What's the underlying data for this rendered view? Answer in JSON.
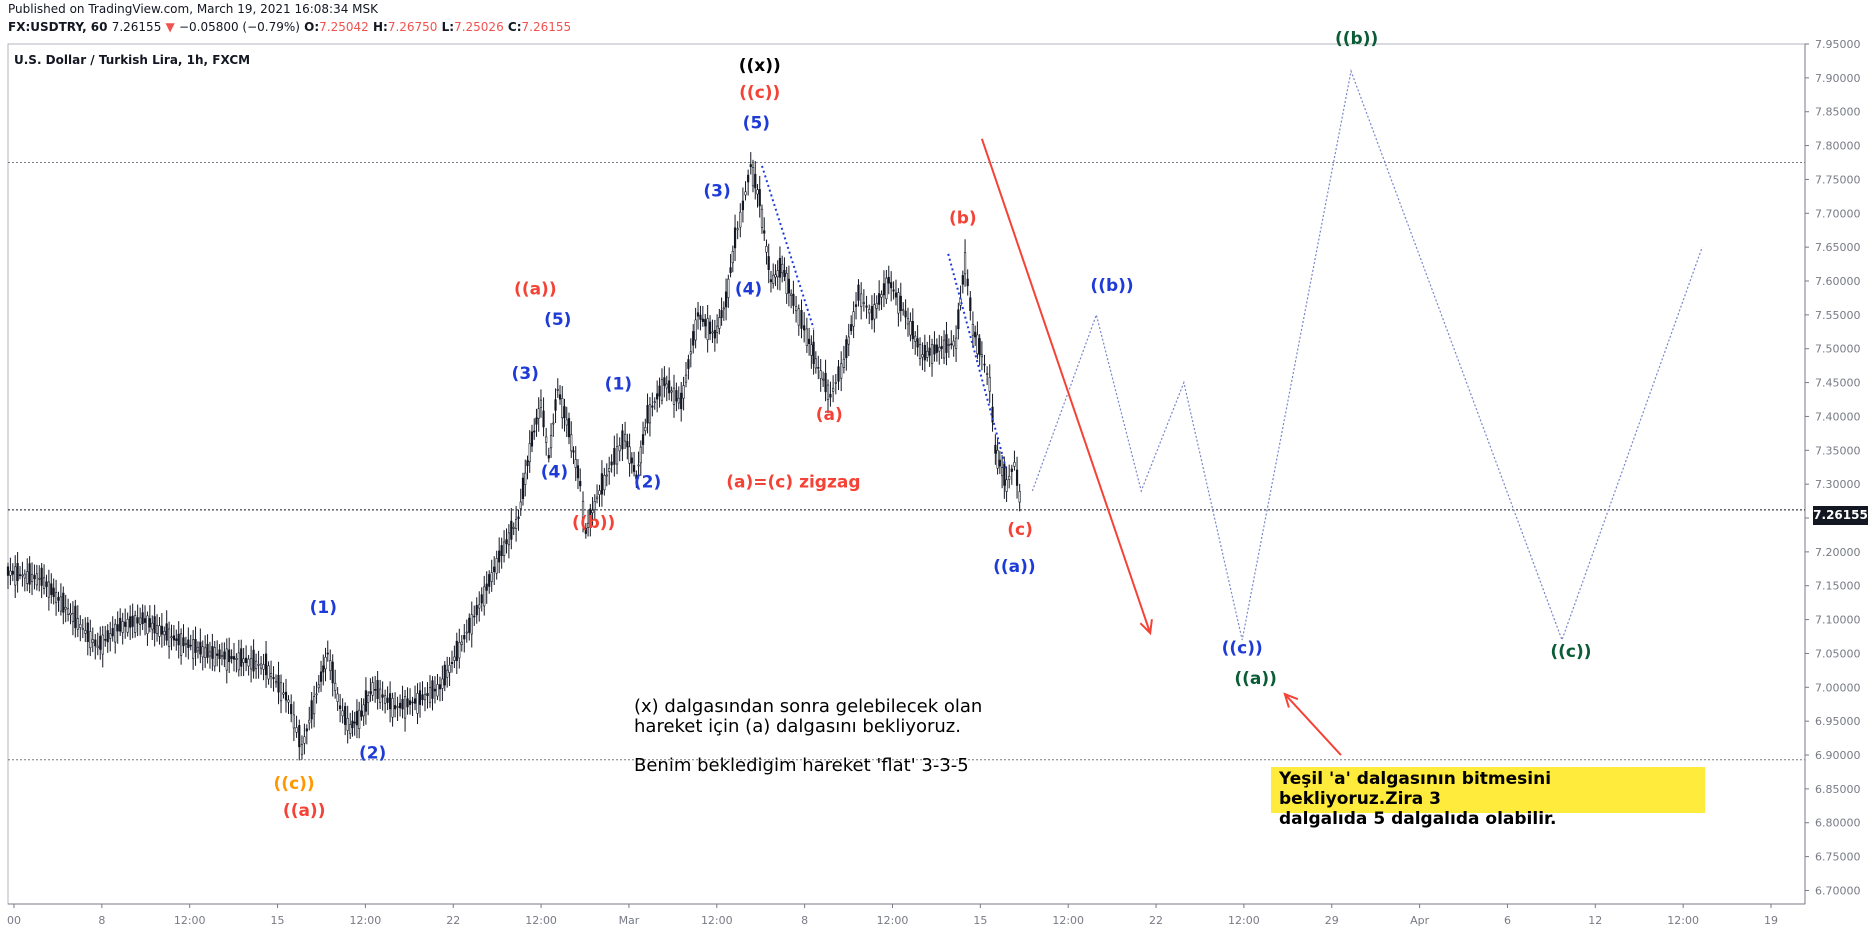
{
  "header": {
    "published": "Published on TradingView.com, March 19, 2021 16:08:34 MSK",
    "symbol": "FX:USDTRY, 60",
    "last": "7.26155",
    "arrow": "▼",
    "change": "−0.05800 (−0.79%)",
    "o_label": "O:",
    "o": "7.25042",
    "h_label": "H:",
    "h": "7.26750",
    "l_label": "L:",
    "l": "7.25026",
    "c_label": "C:",
    "c": "7.26155"
  },
  "chart_data": {
    "type": "line",
    "title": "U.S. Dollar / Turkish Lira, 1h, FXCM",
    "ylim": [
      6.68,
      7.95
    ],
    "y_ticks": [
      "7.95000",
      "7.90000",
      "7.85000",
      "7.80000",
      "7.75000",
      "7.70000",
      "7.65000",
      "7.60000",
      "7.55000",
      "7.50000",
      "7.45000",
      "7.40000",
      "7.35000",
      "7.30000",
      "7.25000",
      "7.20000",
      "7.15000",
      "7.10000",
      "7.05000",
      "7.00000",
      "6.95000",
      "6.90000",
      "6.85000",
      "6.80000",
      "6.75000",
      "6.70000"
    ],
    "x_ticks": [
      "00",
      "8",
      "12:00",
      "15",
      "12:00",
      "22",
      "12:00",
      "Mar",
      "12:00",
      "8",
      "12:00",
      "15",
      "12:00",
      "22",
      "12:00",
      "29",
      "Apr",
      "6",
      "12",
      "12:00",
      "19"
    ],
    "last_price": "7.26155",
    "price_path": [
      [
        0,
        7.17
      ],
      [
        30,
        7.16
      ],
      [
        60,
        7.1
      ],
      [
        80,
        7.06
      ],
      [
        100,
        7.09
      ],
      [
        120,
        7.1
      ],
      [
        150,
        7.07
      ],
      [
        180,
        7.05
      ],
      [
        210,
        7.04
      ],
      [
        230,
        7.03
      ],
      [
        250,
        6.98
      ],
      [
        262,
        6.91
      ],
      [
        275,
        6.99
      ],
      [
        285,
        7.05
      ],
      [
        296,
        6.97
      ],
      [
        305,
        6.94
      ],
      [
        315,
        6.96
      ],
      [
        325,
        7.0
      ],
      [
        345,
        6.97
      ],
      [
        365,
        6.98
      ],
      [
        385,
        7.0
      ],
      [
        400,
        7.05
      ],
      [
        420,
        7.12
      ],
      [
        440,
        7.2
      ],
      [
        455,
        7.25
      ],
      [
        465,
        7.35
      ],
      [
        475,
        7.42
      ],
      [
        482,
        7.34
      ],
      [
        490,
        7.44
      ],
      [
        500,
        7.38
      ],
      [
        510,
        7.3
      ],
      [
        515,
        7.23
      ],
      [
        525,
        7.28
      ],
      [
        538,
        7.33
      ],
      [
        550,
        7.37
      ],
      [
        560,
        7.31
      ],
      [
        570,
        7.4
      ],
      [
        585,
        7.45
      ],
      [
        600,
        7.42
      ],
      [
        615,
        7.55
      ],
      [
        630,
        7.52
      ],
      [
        640,
        7.57
      ],
      [
        648,
        7.66
      ],
      [
        655,
        7.71
      ],
      [
        662,
        7.77
      ],
      [
        670,
        7.72
      ],
      [
        680,
        7.6
      ],
      [
        690,
        7.62
      ],
      [
        700,
        7.57
      ],
      [
        712,
        7.52
      ],
      [
        720,
        7.48
      ],
      [
        733,
        7.43
      ],
      [
        745,
        7.48
      ],
      [
        758,
        7.58
      ],
      [
        770,
        7.55
      ],
      [
        785,
        7.6
      ],
      [
        800,
        7.55
      ],
      [
        815,
        7.49
      ],
      [
        830,
        7.5
      ],
      [
        845,
        7.51
      ],
      [
        853,
        7.63
      ],
      [
        860,
        7.53
      ],
      [
        868,
        7.49
      ],
      [
        875,
        7.45
      ],
      [
        880,
        7.35
      ],
      [
        890,
        7.3
      ],
      [
        897,
        7.33
      ],
      [
        904,
        7.26
      ]
    ],
    "projection_path": [
      [
        913,
        7.29
      ],
      [
        970,
        7.55
      ],
      [
        1010,
        7.29
      ],
      [
        1048,
        7.45
      ],
      [
        1100,
        7.07
      ],
      [
        1197,
        7.91
      ],
      [
        1385,
        7.07
      ],
      [
        1510,
        7.65
      ]
    ],
    "projection_color": "#7986cb",
    "dotted_segments": [
      [
        [
          672,
          7.77
        ],
        [
          718,
          7.53
        ]
      ],
      [
        [
          838,
          7.64
        ],
        [
          890,
          7.32
        ]
      ]
    ],
    "hlines": [
      7.775,
      7.262,
      6.893
    ],
    "red_arrows": [
      [
        [
          868,
          7.81
        ],
        [
          1018,
          7.08
        ]
      ],
      [
        [
          1188,
          6.9
        ],
        [
          1138,
          6.99
        ]
      ]
    ],
    "wave_labels": [
      {
        "text": "((x))",
        "x": 670,
        "y": 7.91,
        "color": "#000000"
      },
      {
        "text": "((c))",
        "x": 670,
        "y": 7.87,
        "color": "#f44336"
      },
      {
        "text": "(5)",
        "x": 667,
        "y": 7.825,
        "color": "#1e3bd8"
      },
      {
        "text": "(3)",
        "x": 632,
        "y": 7.725,
        "color": "#1e3bd8"
      },
      {
        "text": "(4)",
        "x": 660,
        "y": 7.58,
        "color": "#1e3bd8"
      },
      {
        "text": "((a))",
        "x": 470,
        "y": 7.58,
        "color": "#f44336"
      },
      {
        "text": "(5)",
        "x": 490,
        "y": 7.535,
        "color": "#1e3bd8"
      },
      {
        "text": "(3)",
        "x": 461,
        "y": 7.455,
        "color": "#1e3bd8"
      },
      {
        "text": "(1)",
        "x": 544,
        "y": 7.44,
        "color": "#1e3bd8"
      },
      {
        "text": "(4)",
        "x": 487,
        "y": 7.31,
        "color": "#1e3bd8"
      },
      {
        "text": "(2)",
        "x": 570,
        "y": 7.295,
        "color": "#1e3bd8"
      },
      {
        "text": "((b))",
        "x": 522,
        "y": 7.235,
        "color": "#f44336"
      },
      {
        "text": "(b)",
        "x": 851,
        "y": 7.685,
        "color": "#f44336"
      },
      {
        "text": "(a)",
        "x": 732,
        "y": 7.395,
        "color": "#f44336"
      },
      {
        "text": "(c)",
        "x": 902,
        "y": 7.225,
        "color": "#f44336"
      },
      {
        "text": "((a))",
        "x": 897,
        "y": 7.17,
        "color": "#1e3bd8"
      },
      {
        "text": "((b))",
        "x": 984,
        "y": 7.585,
        "color": "#1e3bd8"
      },
      {
        "text": "((c))",
        "x": 1100,
        "y": 7.05,
        "color": "#1e3bd8"
      },
      {
        "text": "((a))",
        "x": 1112,
        "y": 7.005,
        "color": "#0a5c36"
      },
      {
        "text": "((b))",
        "x": 1202,
        "y": 7.95,
        "color": "#0a5c36"
      },
      {
        "text": "((c))",
        "x": 1393,
        "y": 7.045,
        "color": "#0a5c36"
      },
      {
        "text": "(1)",
        "x": 281,
        "y": 7.11,
        "color": "#1e3bd8"
      },
      {
        "text": "(2)",
        "x": 325,
        "y": 6.895,
        "color": "#1e3bd8"
      },
      {
        "text": "((c))",
        "x": 255,
        "y": 6.85,
        "color": "#ff9800"
      },
      {
        "text": "((a))",
        "x": 264,
        "y": 6.81,
        "color": "#f44336"
      },
      {
        "text": "(a)=(c)  zigzag",
        "x": 700,
        "y": 7.295,
        "color": "#f44336"
      }
    ]
  },
  "notes": {
    "line1": "(x) dalgasından sonra gelebilecek olan",
    "line2": "hareket için (a) dalgasını bekliyoruz.",
    "line3": "Benim bekledigim hareket 'flat' 3-3-5",
    "yellow1": "Yeşil 'a' dalgasının bitmesini bekliyoruz.Zira 3",
    "yellow2": "dalgalıda 5 dalgalıda olabilir."
  },
  "colors": {
    "candle": "#131722",
    "axis": "#787b86",
    "grid": "#b2b5be",
    "arrow": "#f44336"
  }
}
